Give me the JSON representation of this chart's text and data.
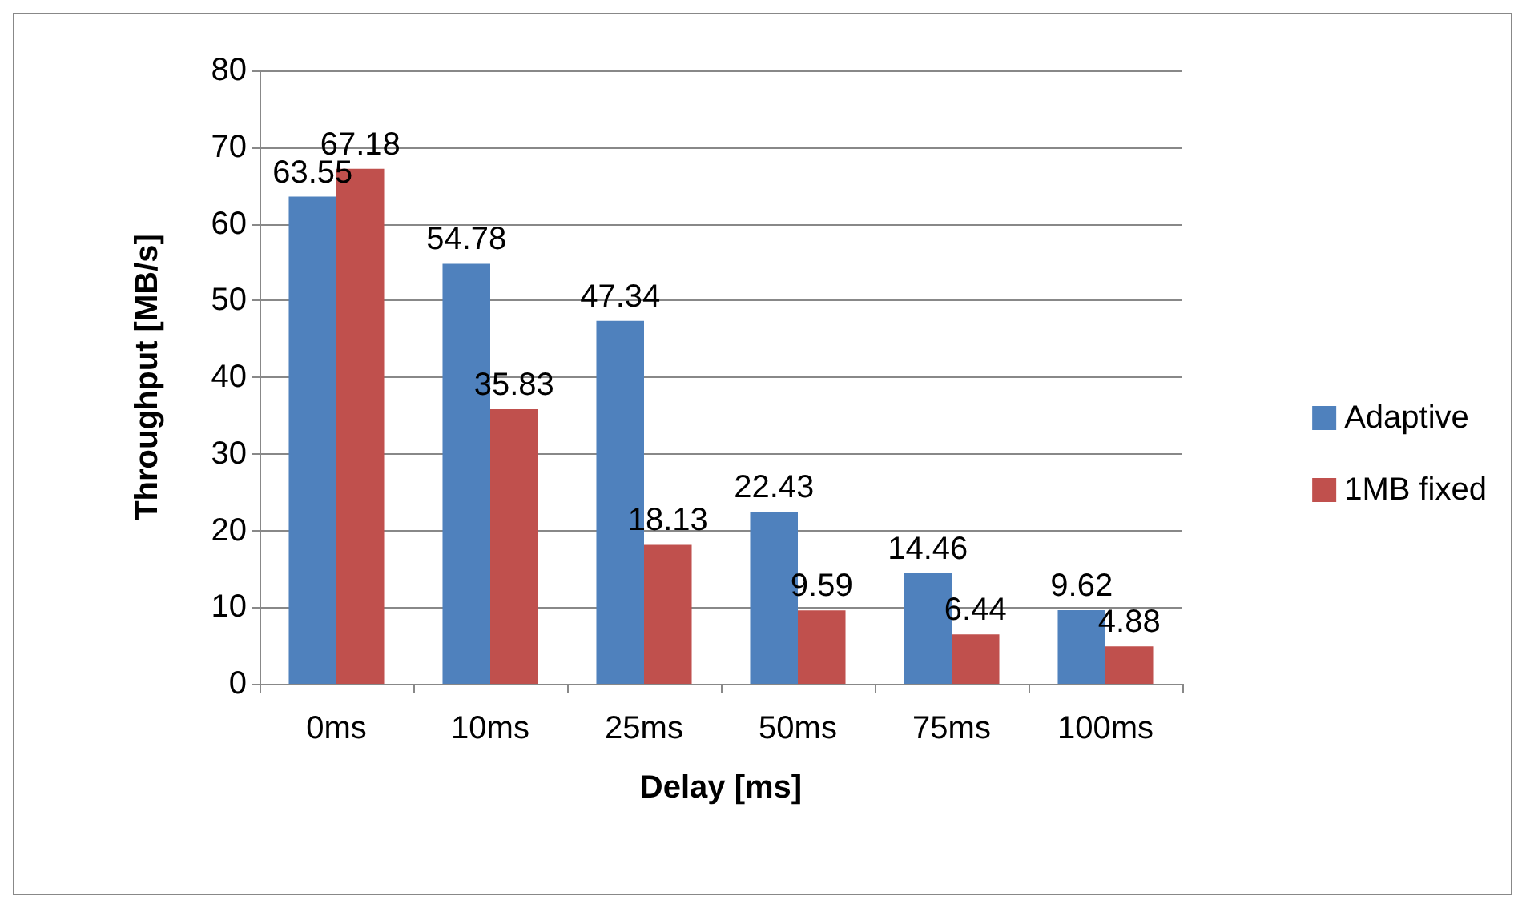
{
  "chart_data": {
    "type": "bar",
    "xlabel": "Delay [ms]",
    "ylabel": "Throughput [MB/s]",
    "categories": [
      "0ms",
      "10ms",
      "25ms",
      "50ms",
      "75ms",
      "100ms"
    ],
    "series": [
      {
        "name": "Adaptive",
        "color": "#4f81bd",
        "values": [
          63.55,
          54.78,
          47.34,
          22.43,
          14.46,
          9.62
        ]
      },
      {
        "name": "1MB fixed",
        "color": "#c0504d",
        "values": [
          67.18,
          35.83,
          18.13,
          9.59,
          6.44,
          4.88
        ]
      }
    ],
    "ylim": [
      0,
      80
    ],
    "yticks": [
      0,
      10,
      20,
      30,
      40,
      50,
      60,
      70,
      80
    ],
    "grid": "y",
    "legend": "right",
    "data_labels": true
  }
}
